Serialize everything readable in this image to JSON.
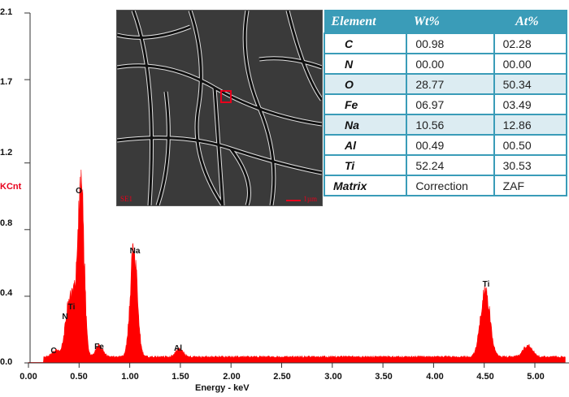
{
  "chart_data": {
    "type": "area",
    "title": "",
    "xlabel": "Energy - keV",
    "ylabel": "KCnt",
    "xlim": [
      0.0,
      5.3
    ],
    "ylim": [
      0.0,
      2.1
    ],
    "x_ticks": [
      "0.00",
      "0.50",
      "1.00",
      "1.50",
      "2.00",
      "2.50",
      "3.00",
      "3.50",
      "4.00",
      "4.50",
      "5.00"
    ],
    "y_ticks": [
      "0.0",
      "0.4",
      "0.8",
      "1.2",
      "1.7",
      "2.1"
    ],
    "grid": false,
    "color": "#ff0000",
    "peaks": [
      {
        "label": "C",
        "energy_keV": 0.27,
        "kcnt": 0.04
      },
      {
        "label": "N",
        "energy_keV": 0.39,
        "kcnt": 0.24
      },
      {
        "label": "Ti",
        "energy_keV": 0.45,
        "kcnt": 0.3
      },
      {
        "label": "O",
        "energy_keV": 0.52,
        "kcnt": 1.0
      },
      {
        "label": "Fe",
        "energy_keV": 0.7,
        "kcnt": 0.07
      },
      {
        "label": "Na",
        "energy_keV": 1.04,
        "kcnt": 0.64
      },
      {
        "label": "Al",
        "energy_keV": 1.49,
        "kcnt": 0.05
      },
      {
        "label": "Ti",
        "energy_keV": 4.51,
        "kcnt": 0.42
      }
    ],
    "minor_peaks": [
      {
        "energy_keV": 4.93,
        "kcnt": 0.07
      }
    ],
    "baseline_kcnt": 0.03
  },
  "sem_image": {
    "detector_label": "SE1",
    "scale_label": "1µm"
  },
  "composition_table": {
    "headers": [
      "Element",
      "Wt%",
      "At%"
    ],
    "rows": [
      {
        "element": "C",
        "wt": "00.98",
        "at": "02.28",
        "highlight": false
      },
      {
        "element": "N",
        "wt": "00.00",
        "at": "00.00",
        "highlight": false
      },
      {
        "element": "O",
        "wt": "28.77",
        "at": "50.34",
        "highlight": true
      },
      {
        "element": "Fe",
        "wt": "06.97",
        "at": "03.49",
        "highlight": false
      },
      {
        "element": "Na",
        "wt": "10.56",
        "at": "12.86",
        "highlight": true
      },
      {
        "element": "Al",
        "wt": "00.49",
        "at": "00.50",
        "highlight": false
      },
      {
        "element": "Ti",
        "wt": "52.24",
        "at": "30.53",
        "highlight": false
      },
      {
        "element": "Matrix",
        "wt": "Correction",
        "at": "ZAF",
        "highlight": false
      }
    ]
  }
}
